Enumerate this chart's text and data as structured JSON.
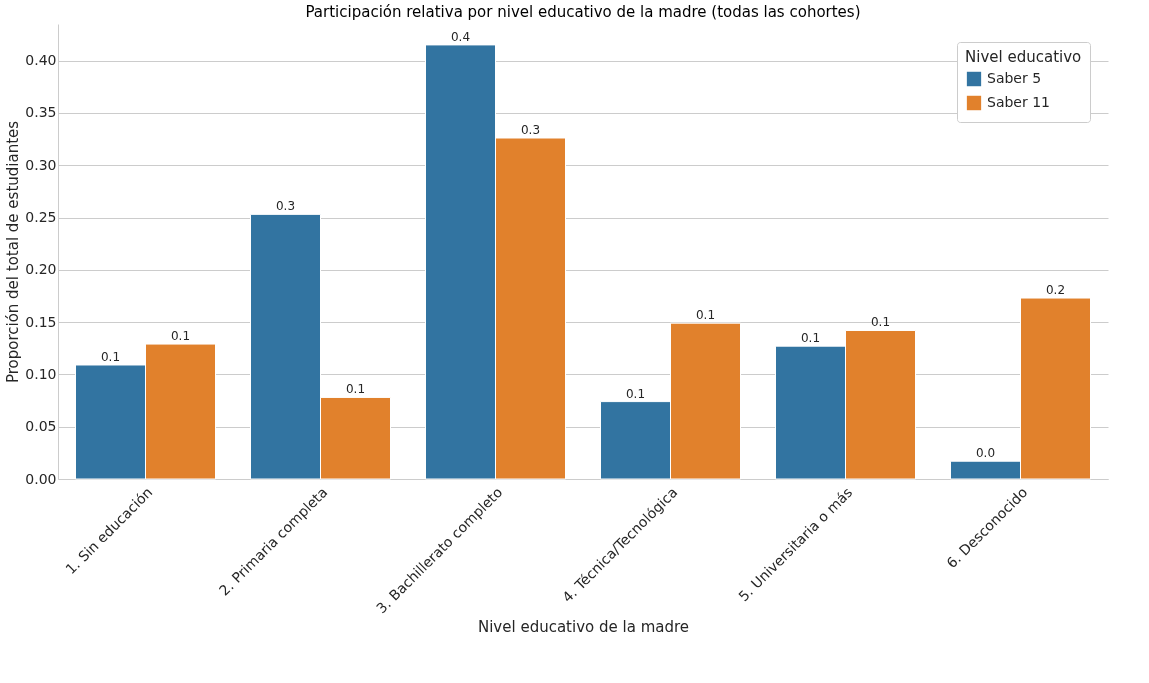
{
  "chart_data": {
    "type": "bar",
    "title": "Participación relativa por nivel educativo de la madre (todas las cohortes)",
    "xlabel": "Nivel educativo de la madre",
    "ylabel": "Proporción del total de estudiantes",
    "legend_title": "Nivel educativo",
    "categories": [
      "1. Sin educación",
      "2. Primaria completa",
      "3. Bachillerato completo",
      "4. Técnica/Tecnológica",
      "5. Universitaria o más",
      "6. Desconocido"
    ],
    "series": [
      {
        "name": "Saber 5",
        "color": "#3274a1",
        "values": [
          0.109,
          0.253,
          0.415,
          0.074,
          0.127,
          0.017
        ],
        "value_labels": [
          "0.1",
          "0.3",
          "0.4",
          "0.1",
          "0.1",
          "0.0"
        ]
      },
      {
        "name": "Saber 11",
        "color": "#e1812c",
        "values": [
          0.129,
          0.078,
          0.326,
          0.149,
          0.142,
          0.173
        ],
        "value_labels": [
          "0.1",
          "0.1",
          "0.3",
          "0.1",
          "0.1",
          "0.2"
        ]
      }
    ],
    "ylim": [
      0,
      0.435
    ],
    "yticks": [
      {
        "value": 0,
        "label": "0.00"
      },
      {
        "value": 0.05,
        "label": "0.05"
      },
      {
        "value": 0.1,
        "label": "0.10"
      },
      {
        "value": 0.15,
        "label": "0.15"
      },
      {
        "value": 0.2,
        "label": "0.20"
      },
      {
        "value": 0.25,
        "label": "0.25"
      },
      {
        "value": 0.3,
        "label": "0.30"
      },
      {
        "value": 0.35,
        "label": "0.35"
      },
      {
        "value": 0.4,
        "label": "0.40"
      }
    ],
    "grid": "y",
    "legend": "top right"
  }
}
